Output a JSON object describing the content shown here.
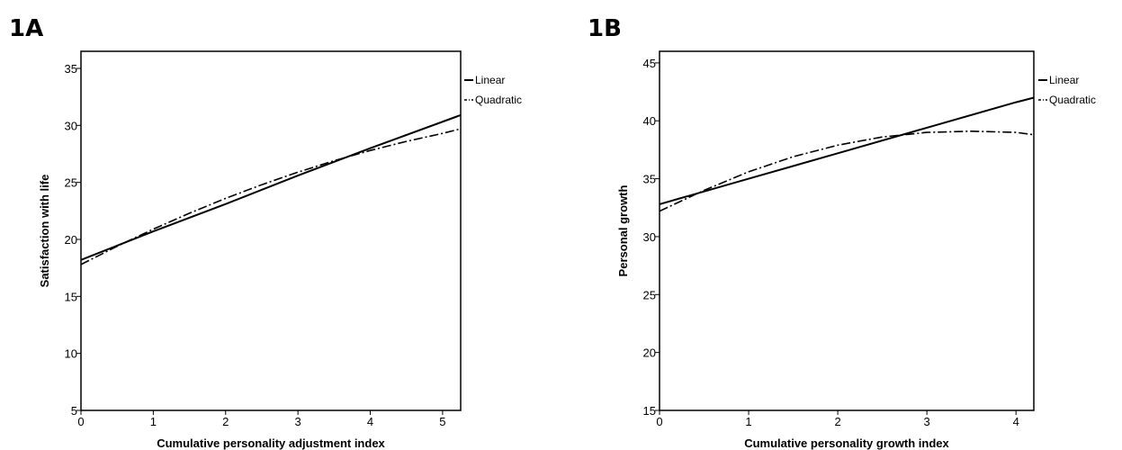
{
  "chart_data": [
    {
      "type": "line",
      "panel_label": "1A",
      "xlabel": "Cumulative personality adjustment index",
      "ylabel": "Satisfaction with life",
      "xlim": [
        0,
        5.25
      ],
      "ylim": [
        5,
        36.5
      ],
      "x_ticks": [
        0,
        1,
        2,
        3,
        4,
        5
      ],
      "y_ticks": [
        5,
        10,
        15,
        20,
        25,
        30,
        35
      ],
      "grid": false,
      "legend_position": "right, outside plot",
      "series": [
        {
          "name": "Linear",
          "style": "solid",
          "x": [
            0,
            1,
            2,
            3,
            4,
            5.25
          ],
          "y": [
            18.2,
            20.7,
            23.1,
            25.6,
            28.0,
            30.9
          ]
        },
        {
          "name": "Quadratic",
          "style": "dash-dot",
          "x": [
            0,
            0.5,
            1,
            1.5,
            2,
            2.5,
            3,
            3.5,
            4,
            4.5,
            5,
            5.25
          ],
          "y": [
            17.8,
            19.4,
            20.9,
            22.3,
            23.6,
            24.8,
            25.9,
            26.9,
            27.8,
            28.6,
            29.3,
            29.7
          ]
        }
      ]
    },
    {
      "type": "line",
      "panel_label": "1B",
      "xlabel": "Cumulative personality growth index",
      "ylabel": "Personal growth",
      "xlim": [
        0,
        4.2
      ],
      "ylim": [
        15,
        46
      ],
      "x_ticks": [
        0,
        1,
        2,
        3,
        4
      ],
      "y_ticks": [
        15,
        20,
        25,
        30,
        35,
        40,
        45
      ],
      "grid": false,
      "legend_position": "right, outside plot",
      "series": [
        {
          "name": "Linear",
          "style": "solid",
          "x": [
            0,
            1,
            2,
            3,
            4,
            4.2
          ],
          "y": [
            32.8,
            35.0,
            37.2,
            39.4,
            41.6,
            42.0
          ]
        },
        {
          "name": "Quadratic",
          "style": "dash-dot",
          "x": [
            0,
            0.5,
            1,
            1.5,
            2,
            2.5,
            3,
            3.5,
            4,
            4.2
          ],
          "y": [
            32.2,
            34.0,
            35.6,
            36.9,
            37.9,
            38.6,
            39.0,
            39.1,
            39.0,
            38.8
          ]
        }
      ]
    }
  ]
}
